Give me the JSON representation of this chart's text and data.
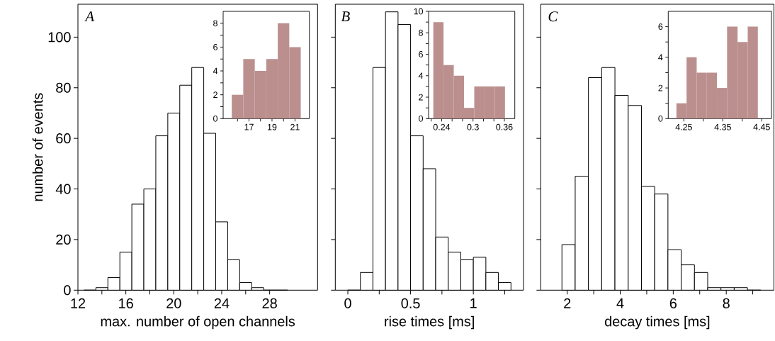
{
  "chart_data": [
    {
      "type": "histogram",
      "xlabel": "max. number of open channels",
      "ylabel": "number of events",
      "annotations": [
        "A"
      ],
      "color": "#ffffff",
      "bins": [
        12.5,
        13.5,
        14.5,
        15.5,
        16.5,
        17.5,
        18.5,
        19.5,
        20.5,
        21.5,
        22.5,
        23.5,
        24.5,
        25.5,
        26.5,
        27.5,
        28.5,
        29.5
      ],
      "values": [
        0,
        1,
        5,
        15,
        34,
        40,
        61,
        70,
        81,
        88,
        62,
        27,
        12,
        3,
        1,
        0,
        0
      ],
      "xlim": [
        12,
        32
      ],
      "ylim": [
        0,
        113
      ],
      "xticks": [
        12,
        {
          "value": 14,
          "label": null
        },
        16,
        {
          "value": 18,
          "label": null
        },
        20,
        {
          "value": 22,
          "label": null
        },
        24,
        {
          "value": 26,
          "label": null
        },
        28
      ],
      "yticks": [
        0,
        20,
        40,
        60,
        80,
        100
      ]
    },
    {
      "type": "histogram",
      "color": "#bc8f8f",
      "bins": [
        15.5,
        16.5,
        17.5,
        18.5,
        19.5,
        20.5,
        21.5
      ],
      "values": [
        2,
        5,
        4,
        5,
        8,
        6
      ],
      "xlim": [
        14.75,
        22.25
      ],
      "ylim": [
        0,
        9
      ],
      "xticks": [
        {
          "value": 16,
          "label": null
        },
        17,
        {
          "value": 18,
          "label": null
        },
        19,
        {
          "value": 20,
          "label": null
        },
        21
      ],
      "yticks": [
        0,
        {
          "value": 1,
          "label": null
        },
        2,
        {
          "value": 3,
          "label": null
        },
        4,
        {
          "value": 5,
          "label": null
        },
        6,
        {
          "value": 7,
          "label": null
        },
        8
      ]
    },
    {
      "type": "histogram",
      "xlabel": "rise times [ms]",
      "annotations": [
        "B"
      ],
      "color": "#ffffff",
      "tick_labels": "x",
      "bins": [
        0,
        0.1,
        0.2,
        0.3,
        0.4,
        0.5,
        0.6,
        0.7,
        0.8,
        0.9,
        1.0,
        1.1,
        1.2,
        1.3
      ],
      "values": [
        0,
        7,
        88,
        110,
        105,
        61,
        48,
        21,
        15,
        12,
        13,
        7,
        3
      ],
      "xlim": [
        -0.1,
        1.4
      ],
      "ylim": [
        0,
        113
      ],
      "xticks": [
        0,
        {
          "value": 0.25,
          "label": null
        },
        0.5,
        {
          "value": 0.75,
          "label": null
        },
        1,
        {
          "value": 1.25,
          "label": null
        }
      ],
      "yticks": [
        0,
        20,
        40,
        60,
        80,
        100
      ]
    },
    {
      "type": "histogram",
      "color": "#bc8f8f",
      "bins": [
        0.224,
        0.2436,
        0.2632,
        0.2828,
        0.3024,
        0.322,
        0.3416,
        0.3612
      ],
      "values": [
        9,
        5,
        4,
        1,
        3,
        3,
        3
      ],
      "xlim": [
        0.215,
        0.38
      ],
      "ylim": [
        0,
        10
      ],
      "xticks": [
        {
          "value": 0.22,
          "label": null
        },
        0.24,
        {
          "value": 0.26,
          "label": null
        },
        {
          "value": 0.28,
          "label": null
        },
        0.3,
        {
          "value": 0.32,
          "label": null
        },
        {
          "value": 0.34,
          "label": null
        },
        0.36
      ],
      "yticks": [
        0,
        {
          "value": 1,
          "label": null
        },
        2,
        {
          "value": 3,
          "label": null
        },
        4,
        {
          "value": 5,
          "label": null
        },
        6,
        {
          "value": 7,
          "label": null
        },
        8,
        {
          "value": 9,
          "label": null
        },
        10
      ]
    },
    {
      "type": "histogram",
      "xlabel": "decay times [ms]",
      "annotations": [
        "C"
      ],
      "color": "#ffffff",
      "tick_labels": "x",
      "bins": [
        1.8,
        2.3,
        2.8,
        3.3,
        3.8,
        4.3,
        4.8,
        5.3,
        5.8,
        6.3,
        6.8,
        7.3,
        7.8,
        8.3,
        8.8,
        9.3
      ],
      "values": [
        18,
        45,
        84,
        88,
        77,
        73,
        41,
        38,
        16,
        10,
        7,
        1,
        1,
        1,
        0
      ],
      "xlim": [
        1,
        9.8
      ],
      "ylim": [
        0,
        113
      ],
      "xticks": [
        2,
        {
          "value": 3,
          "label": null
        },
        4,
        {
          "value": 5,
          "label": null
        },
        6,
        {
          "value": 7,
          "label": null
        },
        8,
        {
          "value": 9,
          "label": null
        }
      ],
      "yticks": [
        0,
        20,
        40,
        60,
        80,
        100
      ]
    },
    {
      "type": "histogram",
      "color": "#bc8f8f",
      "bins": [
        4.231,
        4.257,
        4.283,
        4.309,
        4.335,
        4.361,
        4.388,
        4.414,
        4.44
      ],
      "values": [
        1,
        4,
        3,
        3,
        2,
        6,
        5,
        6
      ],
      "xlim": [
        4.21,
        4.475
      ],
      "ylim": [
        0,
        7
      ],
      "xticks": [
        4.25,
        {
          "value": 4.3,
          "label": null
        },
        4.35,
        {
          "value": 4.4,
          "label": null
        },
        4.45
      ],
      "yticks": [
        0,
        {
          "value": 1,
          "label": null
        },
        2,
        {
          "value": 3,
          "label": null
        },
        4,
        {
          "value": 5,
          "label": null
        },
        6
      ]
    }
  ]
}
